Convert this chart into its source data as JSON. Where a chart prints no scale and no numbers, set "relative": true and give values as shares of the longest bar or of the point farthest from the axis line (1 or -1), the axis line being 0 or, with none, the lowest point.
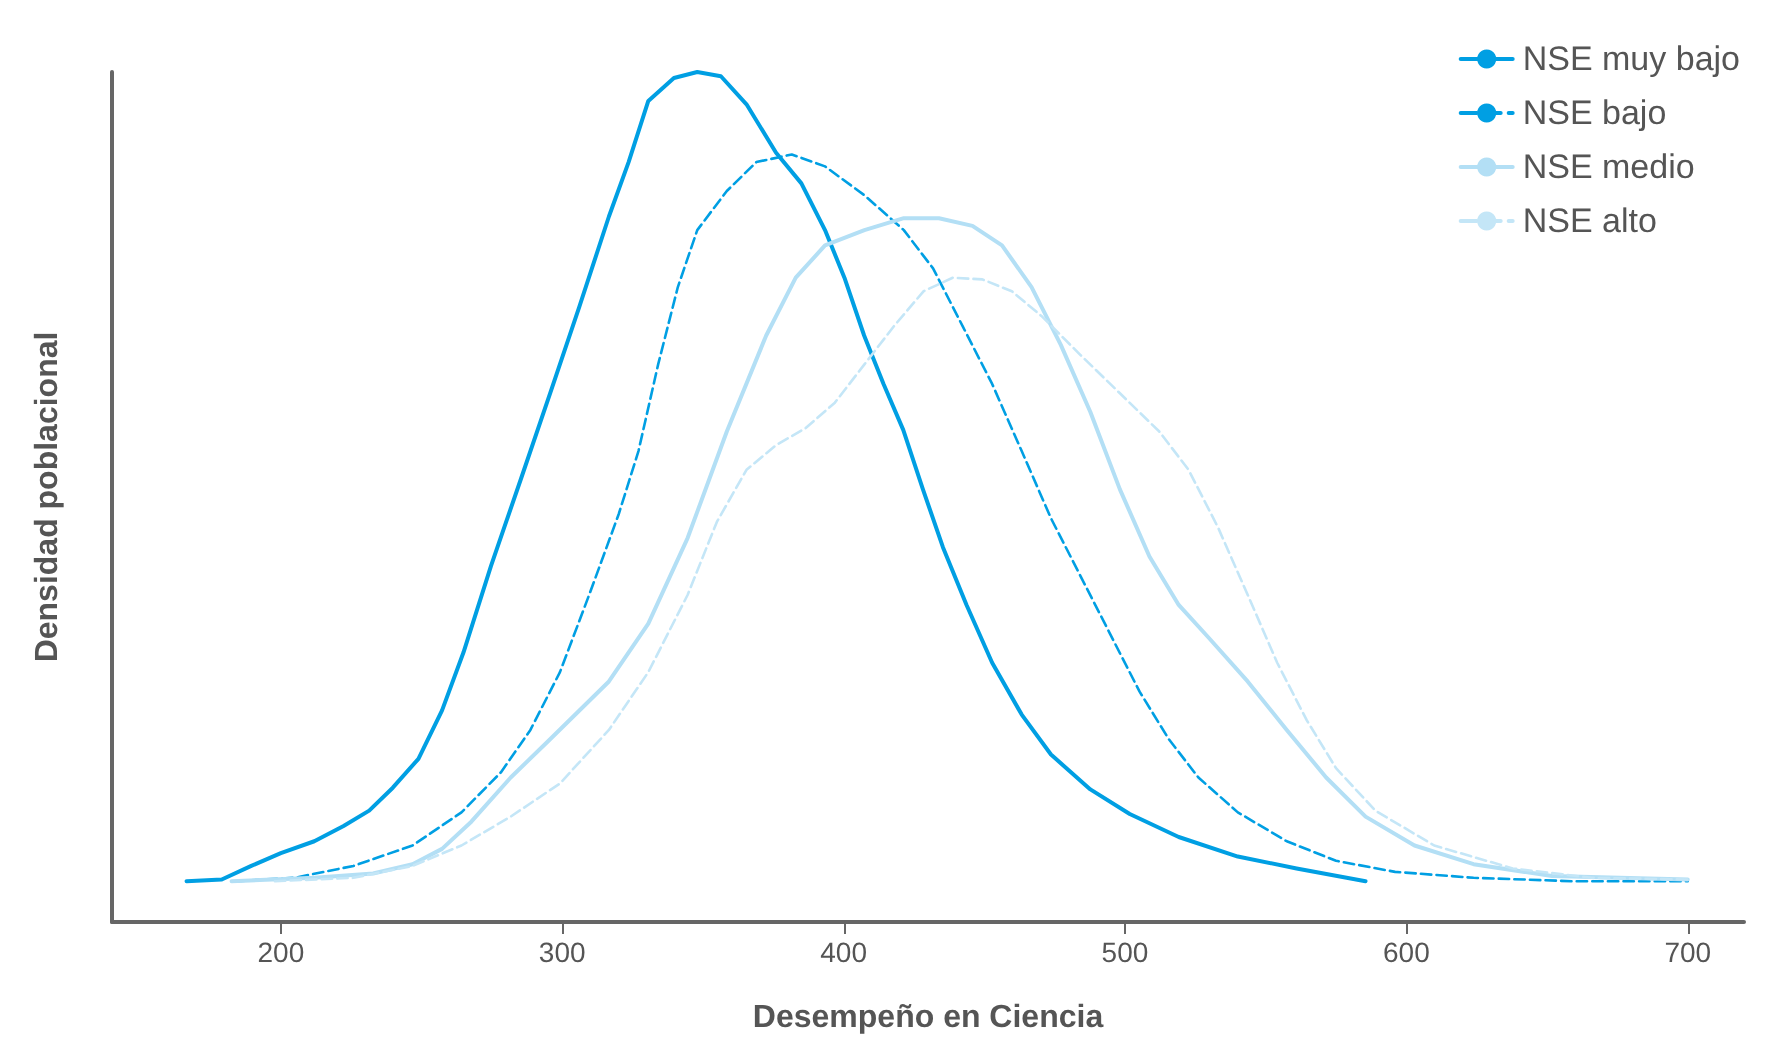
{
  "chart_data": {
    "type": "line",
    "xlabel": "Desempeño en Ciencia",
    "ylabel": "Densidad poblacional",
    "relative": true,
    "xlim": [
      140,
      720
    ],
    "xticks": [
      200,
      300,
      400,
      500,
      600,
      700
    ],
    "grid": false,
    "legend": "top right",
    "marker": "none",
    "series": [
      {
        "name": "NSE muy bajo",
        "color": "#009fe3",
        "line_style": "solid",
        "x": [
          166.5,
          179,
          189.5,
          200,
          211.9,
          222.3,
          231.4,
          239.8,
          248.9,
          257.3,
          264.9,
          274.7,
          285.2,
          295.7,
          306.1,
          316.6,
          323.6,
          330.6,
          339.7,
          348,
          356.4,
          365.5,
          376,
          385,
          393.4,
          400.3,
          407.3,
          414.2,
          421.2,
          428.2,
          435.3,
          443.7,
          452.8,
          463.3,
          473.7,
          487.7,
          501.7,
          519.1,
          540.1,
          561,
          585.5
        ],
        "values": [
          0.048,
          0.05,
          0.066,
          0.081,
          0.095,
          0.113,
          0.131,
          0.158,
          0.192,
          0.249,
          0.317,
          0.419,
          0.52,
          0.622,
          0.724,
          0.83,
          0.894,
          0.966,
          0.993,
          1,
          0.995,
          0.962,
          0.905,
          0.869,
          0.814,
          0.758,
          0.69,
          0.633,
          0.579,
          0.509,
          0.441,
          0.373,
          0.305,
          0.244,
          0.197,
          0.156,
          0.127,
          0.1,
          0.077,
          0.063,
          0.048
        ]
      },
      {
        "name": "NSE bajo",
        "color": "#009fe3",
        "line_style": "dashed",
        "x": [
          183.9,
          204.9,
          225.8,
          246.8,
          264.2,
          278.2,
          288.7,
          299.2,
          309.6,
          320.1,
          327.1,
          334.1,
          341.1,
          348,
          358.5,
          369,
          381.6,
          393.4,
          407.4,
          421.4,
          431.8,
          442.3,
          452.8,
          463.3,
          473.7,
          484.2,
          494.7,
          505.2,
          515.6,
          526.1,
          540.1,
          557.5,
          575,
          596,
          623.9,
          658.8,
          700
        ],
        "values": [
          0.048,
          0.052,
          0.066,
          0.09,
          0.129,
          0.176,
          0.226,
          0.294,
          0.385,
          0.48,
          0.554,
          0.656,
          0.747,
          0.814,
          0.86,
          0.894,
          0.903,
          0.889,
          0.855,
          0.814,
          0.769,
          0.701,
          0.633,
          0.554,
          0.475,
          0.407,
          0.339,
          0.271,
          0.215,
          0.17,
          0.129,
          0.095,
          0.072,
          0.059,
          0.052,
          0.048,
          0.048
        ]
      },
      {
        "name": "NSE medio",
        "color": "#b3dff5",
        "line_style": "solid",
        "x": [
          182.5,
          211.9,
          232.8,
          246.8,
          257.3,
          267.7,
          281.7,
          295.7,
          316.6,
          330.6,
          344.6,
          358.5,
          372.5,
          383,
          393.4,
          407.4,
          421.4,
          433.9,
          445.8,
          456.3,
          466.8,
          477.2,
          487.7,
          498.2,
          508.7,
          519.1,
          529.6,
          543.6,
          557.5,
          571.5,
          585.5,
          602.9,
          623.9,
          651.8,
          700
        ],
        "values": [
          0.048,
          0.052,
          0.057,
          0.068,
          0.086,
          0.118,
          0.17,
          0.215,
          0.283,
          0.351,
          0.452,
          0.577,
          0.69,
          0.758,
          0.796,
          0.814,
          0.828,
          0.828,
          0.819,
          0.796,
          0.747,
          0.679,
          0.6,
          0.509,
          0.43,
          0.373,
          0.335,
          0.283,
          0.226,
          0.17,
          0.124,
          0.09,
          0.068,
          0.054,
          0.05
        ]
      },
      {
        "name": "NSE alto",
        "color": "#c4e6f7",
        "line_style": "dashed",
        "x": [
          197.9,
          225.8,
          246.8,
          264.2,
          281.7,
          299.2,
          316.6,
          330.6,
          344.6,
          355,
          365.5,
          376,
          386.5,
          396.9,
          407.4,
          417.9,
          428.4,
          438.8,
          449.3,
          459.8,
          470.3,
          484.2,
          498.2,
          512.2,
          522.6,
          533.1,
          543.6,
          554.1,
          564.5,
          575,
          589,
          609.9,
          637.8,
          665.8,
          700
        ],
        "values": [
          0.048,
          0.052,
          0.066,
          0.09,
          0.124,
          0.163,
          0.226,
          0.294,
          0.385,
          0.471,
          0.532,
          0.561,
          0.581,
          0.611,
          0.656,
          0.701,
          0.742,
          0.758,
          0.756,
          0.742,
          0.713,
          0.667,
          0.622,
          0.577,
          0.532,
          0.464,
          0.385,
          0.305,
          0.238,
          0.181,
          0.131,
          0.09,
          0.063,
          0.052,
          0.05
        ]
      }
    ]
  }
}
